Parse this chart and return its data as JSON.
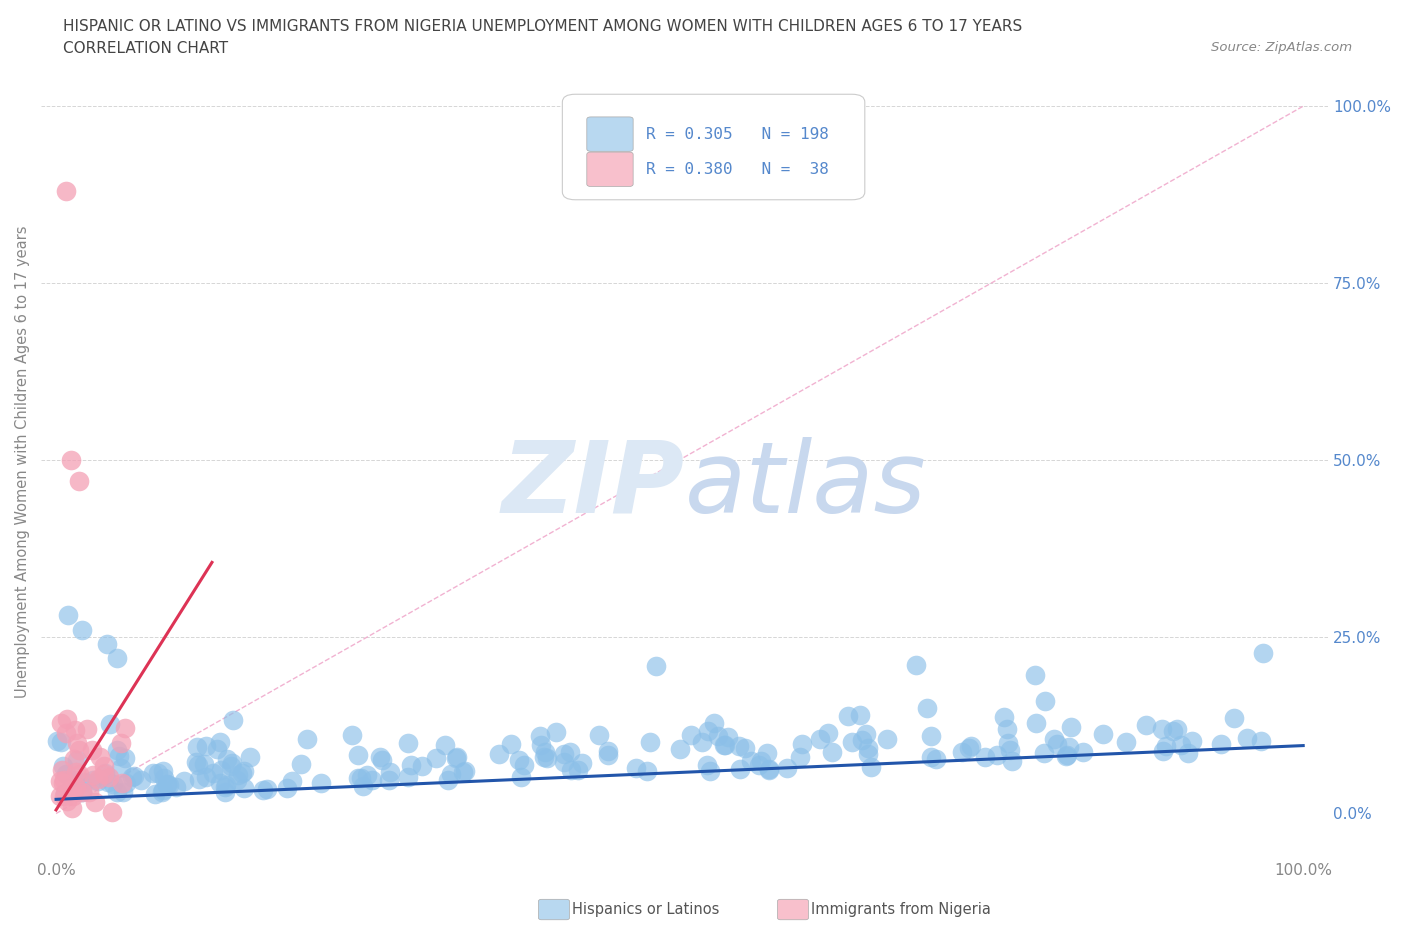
{
  "title_line1": "HISPANIC OR LATINO VS IMMIGRANTS FROM NIGERIA UNEMPLOYMENT AMONG WOMEN WITH CHILDREN AGES 6 TO 17 YEARS",
  "title_line2": "CORRELATION CHART",
  "source": "Source: ZipAtlas.com",
  "ylabel": "Unemployment Among Women with Children Ages 6 to 17 years",
  "x_tick_labels": [
    "0.0%",
    "",
    "",
    "",
    "100.0%"
  ],
  "y_tick_labels_right": [
    "0.0%",
    "25.0%",
    "50.0%",
    "75.0%",
    "100.0%"
  ],
  "y_tick_vals_right": [
    0.0,
    0.25,
    0.5,
    0.75,
    1.0
  ],
  "R_hispanic": 0.305,
  "N_hispanic": 198,
  "R_nigeria": 0.38,
  "N_nigeria": 38,
  "color_hispanic": "#8bbfe8",
  "color_nigeria": "#f4a0b5",
  "line_color_hispanic": "#2255aa",
  "line_color_nigeria": "#dd3355",
  "diag_color": "#f0aacc",
  "legend_box_color_hispanic": "#b8d8f0",
  "legend_box_color_nigeria": "#f8c0cc",
  "background_color": "#ffffff",
  "grid_color": "#cccccc",
  "tick_color": "#888888",
  "right_tick_color": "#5588cc",
  "title_color": "#444444",
  "source_color": "#888888",
  "bottom_label_color": "#555555",
  "watermark_color": "#dce8f5"
}
